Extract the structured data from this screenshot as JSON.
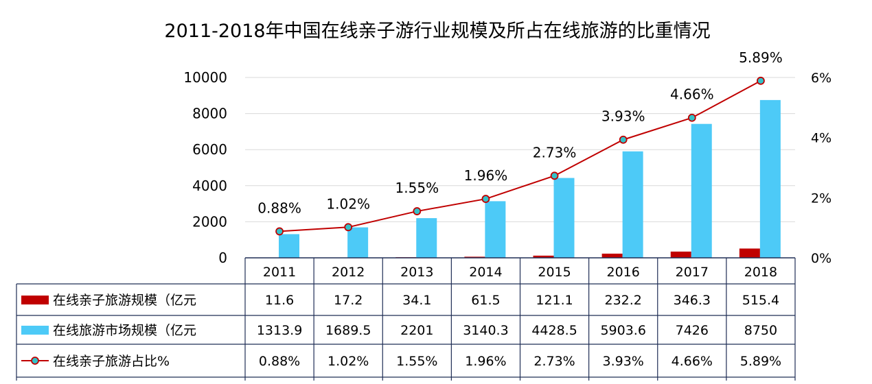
{
  "chart_data": {
    "type": "bar",
    "title": "2011-2018年中国在线亲子游行业规模及所占在线旅游的比重情况",
    "categories": [
      "2011",
      "2012",
      "2013",
      "2014",
      "2015",
      "2016",
      "2017",
      "2018"
    ],
    "left_axis": {
      "ylim": [
        0,
        10000
      ],
      "ticks": [
        "0",
        "2000",
        "4000",
        "6000",
        "8000",
        "10000"
      ]
    },
    "right_axis": {
      "ylim": [
        0,
        6
      ],
      "ticks": [
        "0%",
        "2%",
        "4%",
        "6%"
      ]
    },
    "series": [
      {
        "name": "在线亲子旅游规模（亿元",
        "type": "bar",
        "color": "#c00000",
        "values": [
          11.6,
          17.2,
          34.1,
          61.5,
          121.1,
          232.2,
          346.3,
          515.4
        ],
        "table_values": [
          "11.6",
          "17.2",
          "34.1",
          "61.5",
          "121.1",
          "232.2",
          "346.3",
          "515.4"
        ]
      },
      {
        "name": "在线旅游市场规模（亿元",
        "type": "bar",
        "color": "#4dcaf7",
        "values": [
          1313.9,
          1689.5,
          2201,
          3140.3,
          4428.5,
          5903.6,
          7426,
          8750
        ],
        "table_values": [
          "1313.9",
          "1689.5",
          "2201",
          "3140.3",
          "4428.5",
          "5903.6",
          "7426",
          "8750"
        ]
      },
      {
        "name": "在线亲子旅游占比%",
        "type": "line",
        "axis": "right",
        "line_color": "#c00000",
        "marker_color": "#33c1c8",
        "values": [
          0.88,
          1.02,
          1.55,
          1.96,
          2.73,
          3.93,
          4.66,
          5.89
        ],
        "labels": [
          "0.88%",
          "1.02%",
          "1.55%",
          "1.96%",
          "2.73%",
          "3.93%",
          "4.66%",
          "5.89%"
        ]
      }
    ],
    "grid": true,
    "legend_placement": "bottom-table"
  }
}
